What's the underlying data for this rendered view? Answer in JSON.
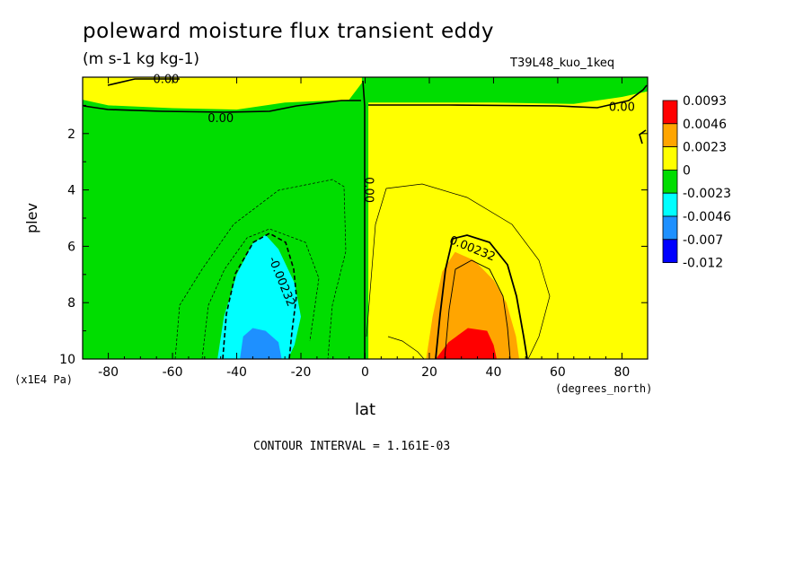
{
  "chart_data": {
    "type": "heatmap",
    "title": "poleward moisture flux transient eddy",
    "units": "(m s-1 kg kg-1)",
    "run_id": "T39L48_kuo_1keq",
    "xlabel": "lat",
    "xunits": "(degrees_north)",
    "ylabel": "plev",
    "yunits": "(x1E4 Pa)",
    "x_ticks": [
      -80,
      -60,
      -40,
      -20,
      0,
      20,
      40,
      60,
      80
    ],
    "y_ticks": [
      2,
      4,
      6,
      8,
      10
    ],
    "xlim": [
      -88,
      88
    ],
    "ylim": [
      10,
      0
    ],
    "contour_interval_text": "CONTOUR INTERVAL = 1.161E-03",
    "colorbar": {
      "labels": [
        "0.0093",
        "0.0046",
        "0.0023",
        "0",
        "-0.0023",
        "-0.0046",
        "-0.007",
        "-0.012"
      ],
      "colors": [
        "#ff0000",
        "#ffa500",
        "#ffff00",
        "#00dd00",
        "#00ffff",
        "#1e90ff",
        "#0000ff"
      ]
    },
    "contour_labels": [
      {
        "text": "0.00",
        "lat": -62,
        "plev": 0.2
      },
      {
        "text": "0.00",
        "lat": -45,
        "plev": 1.6
      },
      {
        "text": "0.00",
        "lat": 80,
        "plev": 1.2
      },
      {
        "text": "0.00",
        "lat": 0,
        "plev": 4.0
      },
      {
        "text": "0.00232",
        "lat": 33,
        "plev": 6.2
      },
      {
        "text": "-0.00232",
        "lat": -27,
        "plev": 7.3
      }
    ],
    "regions": [
      {
        "name": "positive-upper-SH",
        "value": 0.001,
        "color": "#ffff00",
        "polygon": [
          [
            -88,
            0
          ],
          [
            -88,
            0.8
          ],
          [
            -80,
            1.0
          ],
          [
            -60,
            1.1
          ],
          [
            -40,
            1.15
          ],
          [
            -25,
            0.9
          ],
          [
            -5,
            0.8
          ],
          [
            -1,
            0.2
          ],
          [
            -1,
            0
          ]
        ]
      },
      {
        "name": "positive-NH",
        "value": 0.001,
        "color": "#ffff00",
        "polygon": [
          [
            1,
            10
          ],
          [
            1,
            0.9
          ],
          [
            20,
            0.9
          ],
          [
            40,
            0.9
          ],
          [
            65,
            0.95
          ],
          [
            80,
            0.7
          ],
          [
            88,
            0.5
          ],
          [
            88,
            10
          ]
        ]
      },
      {
        "name": "orange-core",
        "value": 0.003,
        "color": "#ffa500",
        "polygon": [
          [
            19,
            10
          ],
          [
            21,
            8.5
          ],
          [
            24,
            6.9
          ],
          [
            28,
            6.2
          ],
          [
            34,
            6.5
          ],
          [
            40,
            7.2
          ],
          [
            44,
            8.0
          ],
          [
            47,
            9.2
          ],
          [
            48,
            10
          ]
        ]
      },
      {
        "name": "red-core",
        "value": 0.006,
        "color": "#ff0000",
        "polygon": [
          [
            22,
            10
          ],
          [
            26,
            9.4
          ],
          [
            32,
            8.9
          ],
          [
            38,
            9.0
          ],
          [
            40,
            9.5
          ],
          [
            41,
            10
          ]
        ]
      },
      {
        "name": "cyan-SH",
        "value": -0.003,
        "color": "#00ffff",
        "polygon": [
          [
            -46,
            10
          ],
          [
            -44,
            8.5
          ],
          [
            -40,
            7.0
          ],
          [
            -35,
            5.9
          ],
          [
            -31,
            5.6
          ],
          [
            -27,
            6.1
          ],
          [
            -22,
            7.3
          ],
          [
            -20,
            8.5
          ],
          [
            -22,
            9.5
          ],
          [
            -24,
            10
          ]
        ]
      },
      {
        "name": "blue-SH",
        "value": -0.005,
        "color": "#1e90ff",
        "polygon": [
          [
            -39,
            10
          ],
          [
            -38,
            9.2
          ],
          [
            -35,
            8.9
          ],
          [
            -31,
            9.0
          ],
          [
            -27,
            9.4
          ],
          [
            -26,
            10
          ]
        ]
      }
    ]
  }
}
